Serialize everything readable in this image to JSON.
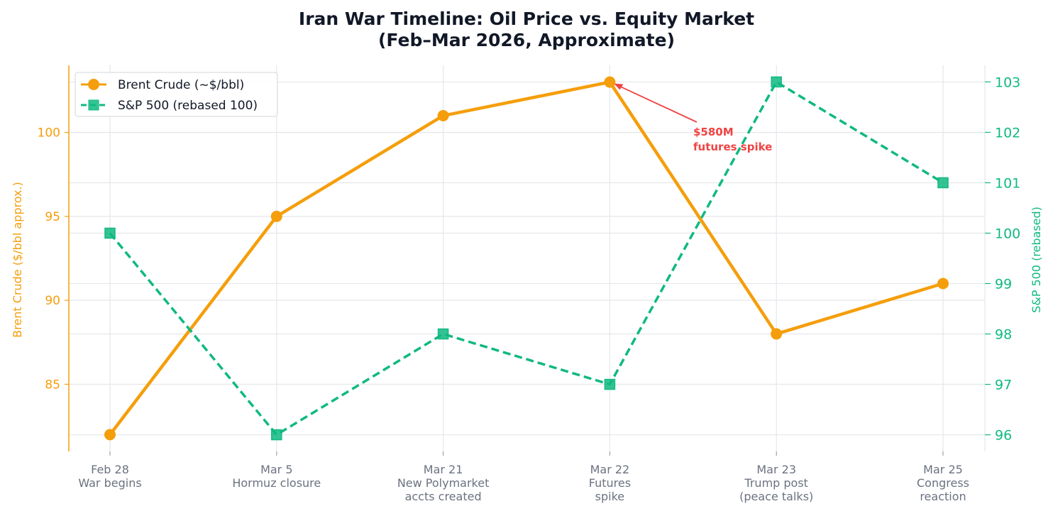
{
  "chart_data": {
    "type": "line",
    "title": [
      "Iran War Timeline: Oil Price vs. Equity Market",
      "(Feb–Mar 2026, Approximate)"
    ],
    "categories": [
      [
        "Feb 28",
        "War begins"
      ],
      [
        "Mar 5",
        "Hormuz closure"
      ],
      [
        "Mar 21",
        "New Polymarket",
        "accts created"
      ],
      [
        "Mar 22",
        "Futures",
        "spike"
      ],
      [
        "Mar 23",
        "Trump post",
        "(peace talks)"
      ],
      [
        "Mar 25",
        "Congress",
        "reaction"
      ]
    ],
    "series": [
      {
        "name": "Brent Crude (~$/bbl)",
        "axis": "left",
        "values": [
          82,
          95,
          101,
          103,
          88,
          91
        ],
        "color": "#f59e0b",
        "marker": "circle",
        "style": "solid"
      },
      {
        "name": "S&P 500 (rebased 100)",
        "axis": "right",
        "values": [
          100,
          96,
          98,
          97,
          103,
          101
        ],
        "color": "#10b981",
        "marker": "square",
        "style": "dashed"
      }
    ],
    "y_left": {
      "label": "Brent Crude ($/bbl approx.)",
      "ticks": [
        85,
        90,
        95,
        100
      ],
      "range": [
        81,
        104
      ]
    },
    "y_right": {
      "label": "S&P 500 (rebased)",
      "ticks": [
        96,
        97,
        98,
        99,
        100,
        101,
        102,
        103
      ],
      "range": [
        95.67,
        103.33
      ]
    },
    "grid": true,
    "legend": "top-left",
    "annotation": {
      "text": [
        "$580M",
        "futures spike"
      ],
      "category_index": 3,
      "series_index": 0,
      "color": "#ef4444"
    }
  }
}
